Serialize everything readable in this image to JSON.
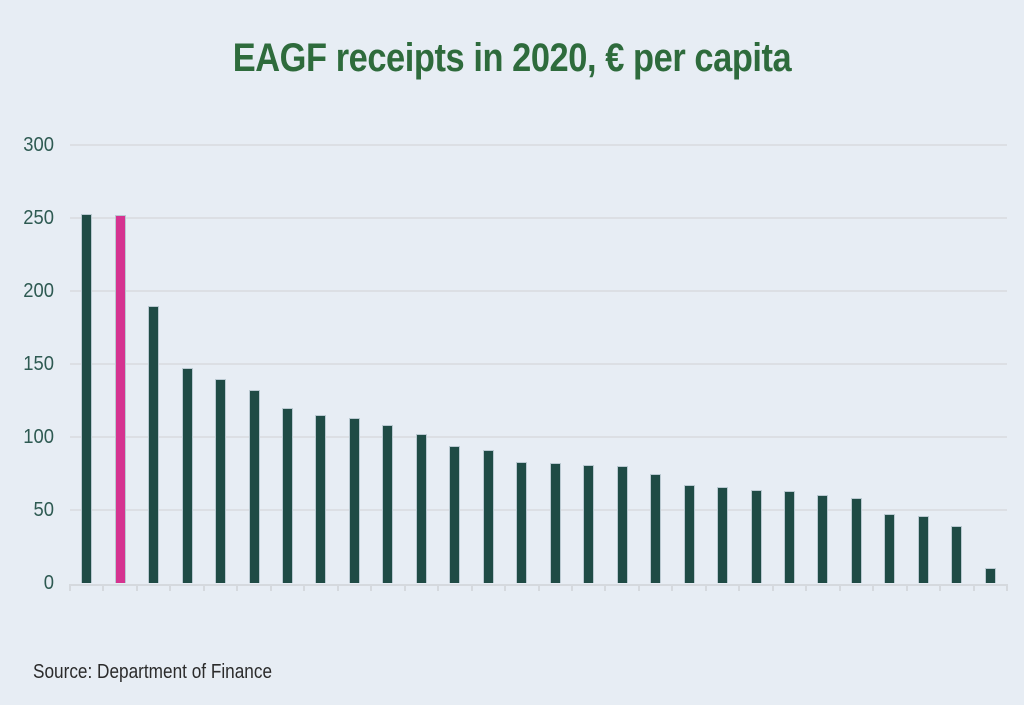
{
  "chart_data": {
    "type": "bar",
    "title": "EAGF receipts in 2020, € per capita",
    "xlabel": "",
    "ylabel": "",
    "ylim": [
      0,
      300
    ],
    "yticks": [
      0,
      50,
      100,
      150,
      200,
      250,
      300
    ],
    "grid": "horizontal gridlines at every 50",
    "x_tick_labels": [],
    "x_axis_note": "28 unlabeled bars (tick marks only), sorted descending",
    "values": [
      253,
      252,
      190,
      147,
      140,
      132,
      120,
      115,
      113,
      108,
      102,
      94,
      91,
      83,
      82,
      81,
      80,
      75,
      67,
      66,
      64,
      63,
      60,
      58,
      47,
      46,
      39,
      10
    ],
    "highlighted_bar_index": 1,
    "legend": "none"
  },
  "source_note": "Source: Department of Finance",
  "colors": {
    "background": "#e7edf4",
    "bar": "#1f4b45",
    "bar_highlight": "#d53390",
    "bar_outline": "#bac9d1",
    "title_text": "#2e6b3c",
    "axis_label_text": "#2e5a52",
    "gridline": "#dcdfe4",
    "axis_line": "#d5d9de",
    "source_text": "#2b2b2b"
  }
}
